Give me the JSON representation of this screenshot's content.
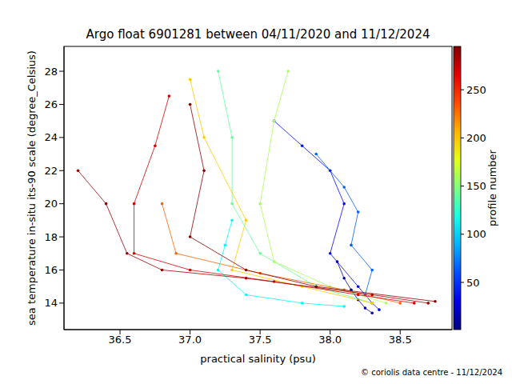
{
  "chart_data": {
    "type": "scatter",
    "title": "Argo float 6901281 between 04/11/2020 and 11/12/2024",
    "x_label": "practical salinity (psu)",
    "y_label": "sea temperature in-situ its-90 scale (degree_Celsius)",
    "source": "© coriolis data centre - 11/12/2024",
    "marker": "circle",
    "line_style": "solid",
    "xlim": [
      36.1,
      38.87
    ],
    "xticks": [
      36.5,
      {
        "value": 37,
        "label": "37.0"
      },
      37.5,
      {
        "value": 38,
        "label": "38.0"
      },
      38.5
    ],
    "ylim": [
      12.4,
      29.5
    ],
    "yticks": [
      14,
      16,
      18,
      20,
      22,
      24,
      26,
      28
    ],
    "colorbar": {
      "label": "profile number",
      "range": [
        1,
        295
      ],
      "ticks": [
        50,
        100,
        150,
        200,
        250
      ]
    },
    "series": [
      {
        "profile": 15,
        "x": [
          38.05,
          38.1,
          38.15,
          38.2,
          38.25,
          38.3
        ],
        "y": [
          16.5,
          15.5,
          14.8,
          14.2,
          13.7,
          13.4
        ]
      },
      {
        "profile": 40,
        "x": [
          37.6,
          37.8,
          38.0,
          38.1,
          38.0,
          38.2,
          38.3,
          38.35
        ],
        "y": [
          25.0,
          23.5,
          22.0,
          20.0,
          17.0,
          15.0,
          14.0,
          13.6
        ]
      },
      {
        "profile": 65,
        "x": [
          37.9,
          38.1,
          38.2,
          38.15,
          38.3,
          38.25
        ],
        "y": [
          23.0,
          21.0,
          19.5,
          17.5,
          16.0,
          14.5
        ]
      },
      {
        "profile": 110,
        "x": [
          37.3,
          37.25,
          37.2,
          37.4,
          37.8,
          38.1
        ],
        "y": [
          19.0,
          17.5,
          16.0,
          14.5,
          14.0,
          13.8
        ]
      },
      {
        "profile": 140,
        "x": [
          37.2,
          37.3,
          37.3,
          37.5,
          37.9,
          38.3
        ],
        "y": [
          28.0,
          24.0,
          20.0,
          17.0,
          15.0,
          14.0
        ]
      },
      {
        "profile": 160,
        "x": [
          37.7,
          37.6,
          37.5,
          37.6,
          38.0,
          38.4
        ],
        "y": [
          28.0,
          25.0,
          20.0,
          16.5,
          15.0,
          14.0
        ]
      },
      {
        "profile": 200,
        "x": [
          37.0,
          37.1,
          37.4,
          37.3,
          37.8,
          38.3
        ],
        "y": [
          27.5,
          24.0,
          19.0,
          16.0,
          15.0,
          14.0
        ]
      },
      {
        "profile": 230,
        "x": [
          36.8,
          36.9,
          37.5,
          38.1,
          38.5
        ],
        "y": [
          20.0,
          17.0,
          15.8,
          14.8,
          14.0
        ]
      },
      {
        "profile": 270,
        "x": [
          36.85,
          36.75,
          36.6,
          36.6,
          37.0,
          37.6,
          38.2,
          38.6
        ],
        "y": [
          26.5,
          23.5,
          20.0,
          17.0,
          16.0,
          15.3,
          14.5,
          14.0
        ]
      },
      {
        "profile": 285,
        "x": [
          36.2,
          36.4,
          36.55,
          36.8,
          37.4,
          38.3,
          38.7
        ],
        "y": [
          22.0,
          20.0,
          17.0,
          16.0,
          15.5,
          14.5,
          14.0
        ]
      },
      {
        "profile": 292,
        "x": [
          37.0,
          37.1,
          37.0,
          37.4,
          37.9,
          38.75
        ],
        "y": [
          26.0,
          22.0,
          18.0,
          16.0,
          15.0,
          14.1
        ]
      }
    ]
  }
}
